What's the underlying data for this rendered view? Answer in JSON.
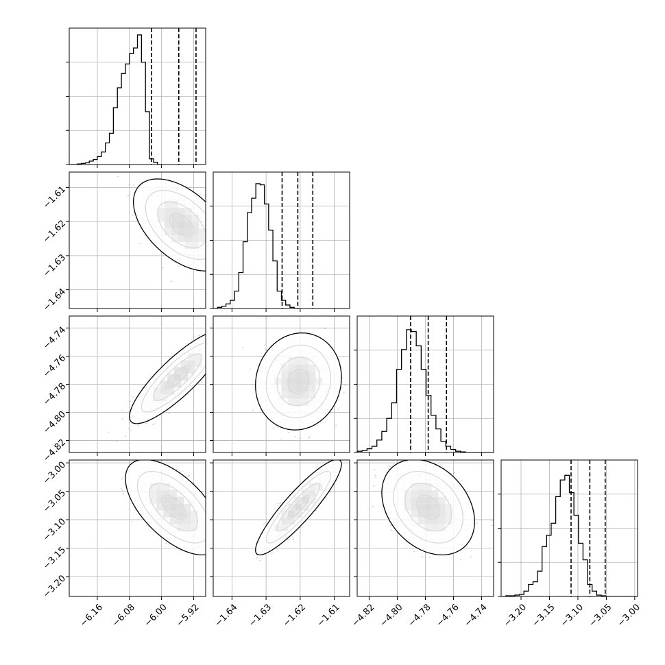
{
  "chart_data": {
    "type": "corner",
    "grid": true,
    "parameters": [
      {
        "id": "p0",
        "xlim": [
          -6.23,
          -5.89
        ],
        "xticks": [
          {
            "v": -6.16,
            "label": "−6.16"
          },
          {
            "v": -6.08,
            "label": "−6.08"
          },
          {
            "v": -6.0,
            "label": "−6.00"
          },
          {
            "v": -5.92,
            "label": "−5.92"
          }
        ],
        "quantiles": [
          -6.025,
          -5.957,
          -5.914
        ],
        "histogram": {
          "start": -6.23,
          "width": 0.01,
          "counts": [
            0,
            0,
            1,
            2,
            3,
            6,
            9,
            14,
            22,
            38,
            55,
            100,
            135,
            160,
            177,
            195,
            205,
            228,
            180,
            93,
            10,
            4,
            0
          ]
        },
        "hist_ymax": 240
      },
      {
        "id": "p1",
        "xlim": [
          -1.6455,
          -1.6055
        ],
        "xticks": [
          {
            "v": -1.64,
            "label": "−1.64"
          },
          {
            "v": -1.63,
            "label": "−1.63"
          },
          {
            "v": -1.62,
            "label": "−1.62"
          },
          {
            "v": -1.61,
            "label": "−1.61"
          }
        ],
        "yticks": [
          {
            "v": -1.61,
            "label": "−1.61"
          },
          {
            "v": -1.62,
            "label": "−1.62"
          },
          {
            "v": -1.63,
            "label": "−1.63"
          },
          {
            "v": -1.64,
            "label": "−1.64"
          }
        ],
        "quantiles": [
          -1.6253,
          -1.6207,
          -1.6163
        ],
        "histogram": {
          "start": -1.6455,
          "width": 0.00125,
          "counts": [
            0,
            2,
            4,
            8,
            14,
            30,
            62,
            115,
            165,
            190,
            215,
            213,
            180,
            135,
            82,
            30,
            14,
            6,
            2,
            0
          ]
        },
        "hist_ymax": 235
      },
      {
        "id": "p2",
        "xlim": [
          -4.8285,
          -4.7315
        ],
        "xticks": [
          {
            "v": -4.82,
            "label": "−4.82"
          },
          {
            "v": -4.8,
            "label": "−4.80"
          },
          {
            "v": -4.78,
            "label": "−4.78"
          },
          {
            "v": -4.76,
            "label": "−4.76"
          },
          {
            "v": -4.74,
            "label": "−4.74"
          }
        ],
        "yticks": [
          {
            "v": -4.74,
            "label": "−4.74"
          },
          {
            "v": -4.76,
            "label": "−4.76"
          },
          {
            "v": -4.78,
            "label": "−4.78"
          },
          {
            "v": -4.8,
            "label": "−4.80"
          },
          {
            "v": -4.82,
            "label": "−4.82"
          }
        ],
        "quantiles": [
          -4.7905,
          -4.778,
          -4.765
        ],
        "histogram": {
          "start": -4.8285,
          "width": 0.0035,
          "counts": [
            2,
            3,
            6,
            10,
            20,
            34,
            55,
            80,
            134,
            166,
            198,
            195,
            172,
            134,
            92,
            60,
            38,
            18,
            10,
            5,
            2,
            1,
            0,
            0,
            0,
            0,
            0,
            0
          ]
        },
        "hist_ymax": 220
      },
      {
        "id": "p3",
        "xlim": [
          -3.235,
          -2.995
        ],
        "xticks": [
          {
            "v": -3.2,
            "label": "−3.20"
          },
          {
            "v": -3.15,
            "label": "−3.15"
          },
          {
            "v": -3.1,
            "label": "−3.10"
          },
          {
            "v": -3.05,
            "label": "−3.05"
          },
          {
            "v": -3.0,
            "label": "−3.00"
          }
        ],
        "yticks": [
          {
            "v": -3.0,
            "label": "−3.00"
          },
          {
            "v": -3.05,
            "label": "−3.05"
          },
          {
            "v": -3.1,
            "label": "−3.10"
          },
          {
            "v": -3.15,
            "label": "−3.15"
          },
          {
            "v": -3.2,
            "label": "−3.20"
          }
        ],
        "quantiles": [
          -3.112,
          -3.079,
          -3.052
        ],
        "histogram": {
          "start": -3.235,
          "width": 0.008,
          "counts": [
            0,
            1,
            1,
            2,
            3,
            8,
            18,
            22,
            38,
            75,
            92,
            110,
            150,
            175,
            182,
            156,
            122,
            80,
            55,
            18,
            8,
            2,
            1,
            0,
            0,
            0,
            0,
            0,
            0,
            0
          ]
        },
        "hist_ymax": 205
      }
    ],
    "pairs": [
      {
        "row": 1,
        "col": 0,
        "center": [
          -5.95,
          -1.621
        ],
        "sd": [
          0.04,
          0.0045
        ],
        "rho": -0.5
      },
      {
        "row": 2,
        "col": 0,
        "center": [
          -5.96,
          -4.775
        ],
        "sd": [
          0.04,
          0.011
        ],
        "rho": 0.85
      },
      {
        "row": 2,
        "col": 1,
        "center": [
          -1.6205,
          -4.778
        ],
        "sd": [
          0.0042,
          0.0115
        ],
        "rho": 0.08
      },
      {
        "row": 3,
        "col": 0,
        "center": [
          -5.97,
          -3.078
        ],
        "sd": [
          0.04,
          0.028
        ],
        "rho": -0.6
      },
      {
        "row": 3,
        "col": 1,
        "center": [
          -1.6205,
          -3.078
        ],
        "sd": [
          0.0042,
          0.028
        ],
        "rho": 0.9
      },
      {
        "row": 3,
        "col": 2,
        "center": [
          -4.778,
          -3.078
        ],
        "sd": [
          0.011,
          0.028
        ],
        "rho": -0.3
      }
    ],
    "contour_levels_sigma": [
      0.5,
      1.0,
      1.5,
      2.0
    ]
  }
}
